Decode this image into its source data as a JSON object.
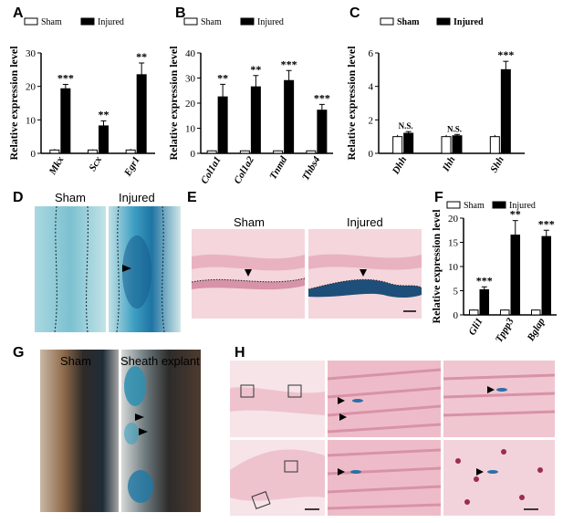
{
  "panels": {
    "A": "A",
    "B": "B",
    "C": "C",
    "D": "D",
    "E": "E",
    "F": "F",
    "G": "G",
    "H": "H"
  },
  "colors": {
    "bar_sham": "#ffffff",
    "bar_injured": "#000000",
    "stain_blue": "#2f7fa6",
    "tissue_pink": "#f0c9d2"
  },
  "chart_data": [
    {
      "id": "A",
      "type": "bar",
      "categories": [
        "Mkx",
        "Scx",
        "Egr1"
      ],
      "series": [
        {
          "name": "Sham",
          "values": [
            1,
            1,
            1
          ],
          "errors": [
            0.3,
            0.2,
            0.3
          ]
        },
        {
          "name": "Injured",
          "values": [
            19.3,
            8.2,
            23.5
          ],
          "errors": [
            1.3,
            1.5,
            3.5
          ]
        }
      ],
      "significance": [
        "***",
        "**",
        "**"
      ],
      "ylabel": "Relative expression level",
      "ylim": [
        0,
        30
      ],
      "yticks": [
        "0",
        "10",
        "20",
        "30"
      ],
      "legend": "top"
    },
    {
      "id": "B",
      "type": "bar",
      "categories": [
        "Col1a1",
        "Col1a2",
        "Tnmd",
        "Thbs4"
      ],
      "series": [
        {
          "name": "Sham",
          "values": [
            1,
            1,
            1,
            1
          ],
          "errors": [
            0.2,
            0.2,
            0.2,
            0.2
          ]
        },
        {
          "name": "Injured",
          "values": [
            22.5,
            26.5,
            29,
            17.2
          ],
          "errors": [
            5,
            4.5,
            4,
            2.3
          ]
        }
      ],
      "significance": [
        "**",
        "**",
        "***",
        "***"
      ],
      "ylabel": "Relative expression level",
      "ylim": [
        0,
        40
      ],
      "yticks": [
        "0",
        "10",
        "20",
        "30",
        "40"
      ],
      "legend": "top"
    },
    {
      "id": "C",
      "type": "bar",
      "categories": [
        "Dhh",
        "Ihh",
        "Shh"
      ],
      "series": [
        {
          "name": "Sham",
          "values": [
            1,
            1,
            1
          ],
          "errors": [
            0.1,
            0.1,
            0.1
          ]
        },
        {
          "name": "Injured",
          "values": [
            1.2,
            1.05,
            5
          ],
          "errors": [
            0.1,
            0.08,
            0.5
          ]
        }
      ],
      "significance": [
        "N.S.",
        "N.S.",
        "***"
      ],
      "ylabel": "Relative expression level",
      "ylim": [
        0,
        6
      ],
      "yticks": [
        "0",
        "2",
        "4",
        "6"
      ],
      "legend": "top"
    },
    {
      "id": "F",
      "type": "bar",
      "categories": [
        "Gli1",
        "Tppp3",
        "Bglap"
      ],
      "series": [
        {
          "name": "Sham",
          "values": [
            1,
            1,
            1
          ],
          "errors": [
            0.1,
            0.1,
            0.1
          ]
        },
        {
          "name": "Injured",
          "values": [
            5.2,
            16.5,
            16.2
          ],
          "errors": [
            0.6,
            3,
            1.3
          ]
        }
      ],
      "significance": [
        "***",
        "**",
        "***"
      ],
      "ylabel": "Relative expression level",
      "ylim": [
        0,
        20
      ],
      "yticks": [
        "0",
        "5",
        "10",
        "15",
        "20"
      ],
      "legend": "top"
    }
  ],
  "images": {
    "D": {
      "left_label": "Sham",
      "right_label": "Injured"
    },
    "E": {
      "left_label": "Sham",
      "right_label": "Injured"
    },
    "G": {
      "left_label": "Sham",
      "right_label": "Sheath explant"
    }
  }
}
